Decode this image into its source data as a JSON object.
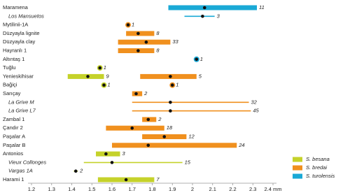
{
  "chart_data": {
    "type": "range",
    "series": [
      {
        "name": "S. besana",
        "color": "#c5d22a"
      },
      {
        "name": "S. bredai",
        "color": "#f0901e"
      },
      {
        "name": "S. turolensis",
        "color": "#1aa9d6"
      }
    ],
    "rows": [
      {
        "label": "Maramena",
        "italic": false,
        "entries": [
          {
            "species": 2,
            "min": 1.88,
            "max": 2.32,
            "mean": 2.06,
            "n": 11
          }
        ]
      },
      {
        "label": "Los Mansuetos",
        "italic": true,
        "entries": [
          {
            "species": 2,
            "min": 1.96,
            "max": 2.11,
            "mean": 2.05,
            "n": 3
          }
        ]
      },
      {
        "label": "Mytilinii-1A",
        "italic": false,
        "entries": [
          {
            "species": 1,
            "mean": 1.68,
            "n": 1
          }
        ]
      },
      {
        "label": "Düzyayla lignite",
        "italic": false,
        "entries": [
          {
            "species": 1,
            "min": 1.67,
            "max": 1.81,
            "mean": 1.73,
            "n": 8
          }
        ]
      },
      {
        "label": "Düzyayla clay",
        "italic": false,
        "entries": [
          {
            "species": 1,
            "min": 1.63,
            "max": 1.89,
            "mean": 1.77,
            "n": 33
          }
        ]
      },
      {
        "label": "Hayranlı 1",
        "italic": false,
        "entries": [
          {
            "species": 1,
            "min": 1.63,
            "max": 1.81,
            "mean": 1.73,
            "n": 8
          }
        ]
      },
      {
        "label": "Altıntaş 1",
        "italic": false,
        "entries": [
          {
            "species": 2,
            "mean": 2.02,
            "n": 1
          }
        ]
      },
      {
        "label": "Tuğlu",
        "italic": false,
        "entries": [
          {
            "species": 0,
            "mean": 1.54,
            "n": 1
          }
        ]
      },
      {
        "label": "Yenieskihisar",
        "italic": false,
        "entries": [
          {
            "species": 0,
            "min": 1.38,
            "max": 1.56,
            "mean": 1.48,
            "n": 9
          },
          {
            "species": 1,
            "min": 1.74,
            "max": 2.02,
            "mean": 1.89,
            "n": 5
          }
        ]
      },
      {
        "label": "Bağiçi",
        "italic": false,
        "entries": [
          {
            "species": 0,
            "mean": 1.56,
            "n": 1
          },
          {
            "species": 1,
            "mean": 1.9,
            "n": 1
          }
        ]
      },
      {
        "label": "Sarıçay",
        "italic": false,
        "entries": [
          {
            "species": 1,
            "min": 1.7,
            "max": 1.75,
            "mean": 1.72,
            "n": 2
          }
        ]
      },
      {
        "label": "La Grive M",
        "italic": true,
        "entries": [
          {
            "species": 1,
            "min": 1.7,
            "max": 2.28,
            "mean": 1.89,
            "n": 32
          }
        ]
      },
      {
        "label": "La Grive L7",
        "italic": true,
        "entries": [
          {
            "species": 1,
            "min": 1.7,
            "max": 2.29,
            "mean": 1.89,
            "n": 45
          }
        ]
      },
      {
        "label": "Zambal 1",
        "italic": false,
        "entries": [
          {
            "species": 1,
            "min": 1.75,
            "max": 1.82,
            "mean": 1.78,
            "n": 2
          }
        ]
      },
      {
        "label": "Çandır 2",
        "italic": false,
        "entries": [
          {
            "species": 1,
            "min": 1.57,
            "max": 1.86,
            "mean": 1.7,
            "n": 18
          }
        ]
      },
      {
        "label": "Paşalar A",
        "italic": false,
        "entries": [
          {
            "species": 1,
            "min": 1.75,
            "max": 1.97,
            "mean": 1.86,
            "n": 12
          }
        ]
      },
      {
        "label": "Paşalar B",
        "italic": false,
        "entries": [
          {
            "species": 1,
            "min": 1.6,
            "max": 2.22,
            "mean": 1.78,
            "n": 24
          }
        ]
      },
      {
        "label": "Antonios",
        "italic": false,
        "entries": [
          {
            "species": 0,
            "min": 1.52,
            "max": 1.64,
            "mean": 1.57,
            "n": 3
          }
        ]
      },
      {
        "label": "Vieux Collonges",
        "italic": true,
        "entries": [
          {
            "species": 0,
            "min": 1.46,
            "max": 1.95,
            "mean": 1.6,
            "n": 15
          }
        ]
      },
      {
        "label": "Vargas 1A",
        "italic": true,
        "entries": [
          {
            "species": 0,
            "min": 1.41,
            "max": 1.43,
            "mean": 1.42,
            "n": 2
          }
        ]
      },
      {
        "label": "Harami 1",
        "italic": false,
        "entries": [
          {
            "species": 0,
            "min": 1.53,
            "max": 1.81,
            "mean": 1.67,
            "n": 7
          }
        ]
      }
    ],
    "xlim": [
      1.2,
      2.4
    ],
    "xticks": [
      1.2,
      1.3,
      1.4,
      1.5,
      1.6,
      1.7,
      1.8,
      1.9,
      2,
      2.1,
      2.2,
      2.3,
      {
        "value": 2.4,
        "label": "2.4 mm"
      }
    ]
  }
}
